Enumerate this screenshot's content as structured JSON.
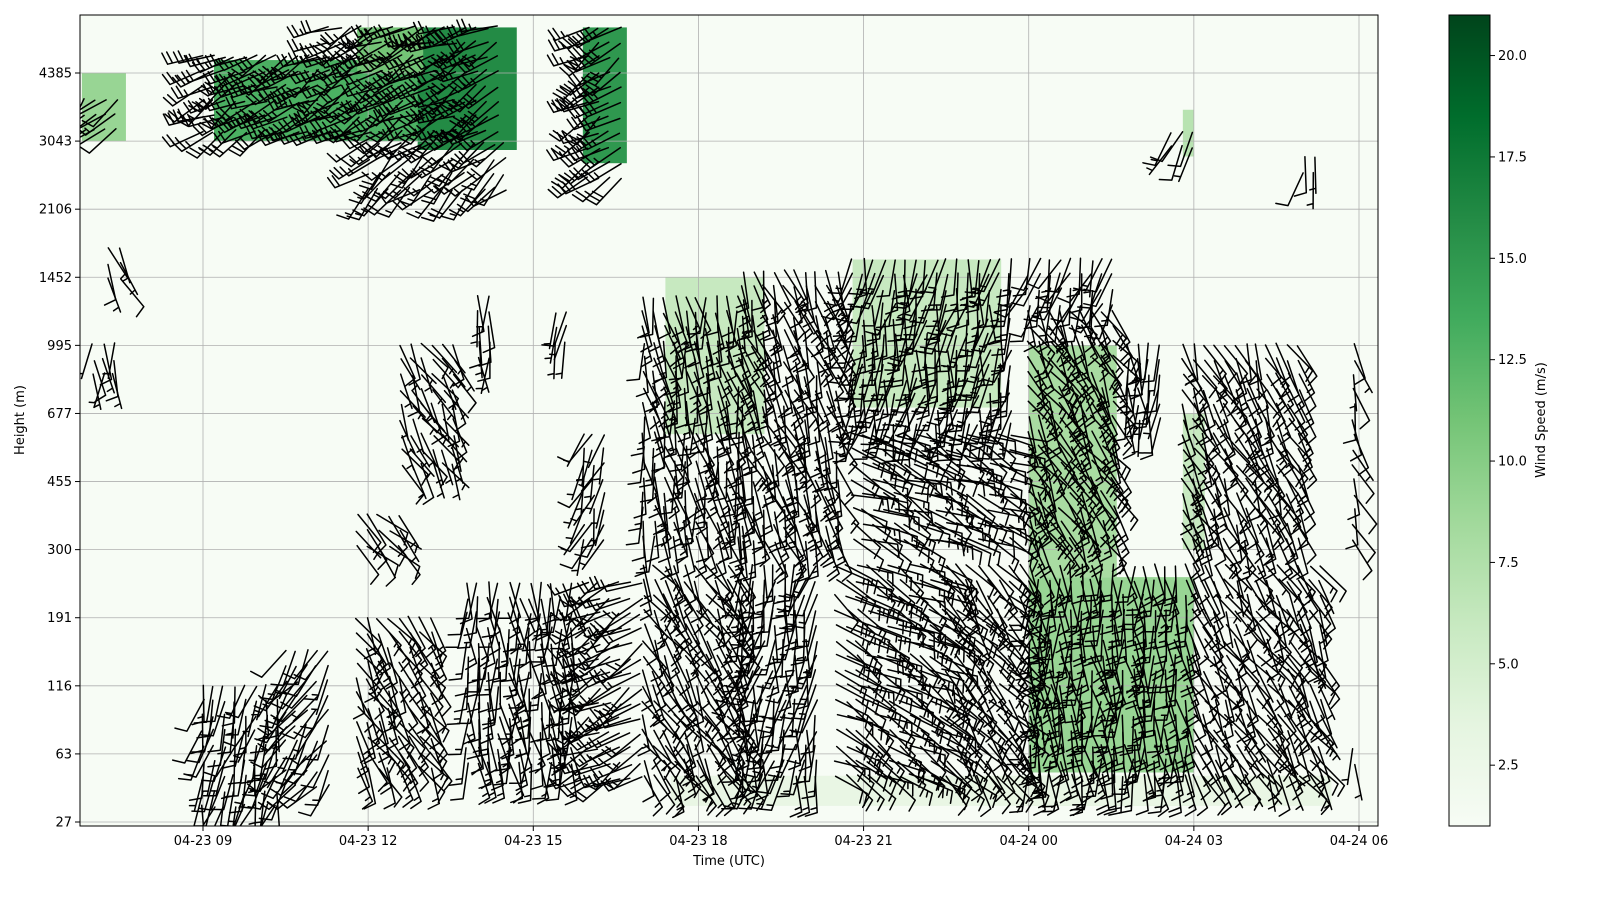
{
  "chart_data": {
    "type": "heatmap",
    "subtype": "wind-barbs-over-speed-field",
    "xlabel": "Time (UTC)",
    "ylabel": "Height (m)",
    "colorbar_label": "Wind Speed (m/s)",
    "x_ticks": [
      "04-23 09",
      "04-23 12",
      "04-23 15",
      "04-23 18",
      "04-23 21",
      "04-24 00",
      "04-24 03",
      "04-24 06"
    ],
    "x_tick_hours": [
      9,
      12,
      15,
      18,
      21,
      24,
      27,
      30
    ],
    "xlim_hours": [
      6.75,
      30.3
    ],
    "y_ticks": [
      "27",
      "63",
      "116",
      "191",
      "300",
      "455",
      "677",
      "995",
      "1452",
      "2106",
      "3043",
      "4385"
    ],
    "colorbar_ticks": [
      "2.5",
      "5.0",
      "7.5",
      "10.0",
      "12.5",
      "15.0",
      "17.5",
      "20.0"
    ],
    "colorbar_values": [
      2.5,
      5.0,
      7.5,
      10.0,
      12.5,
      15.0,
      17.5,
      20.0
    ],
    "colorbar_range": [
      1.0,
      21.0
    ],
    "colormap": "Greens",
    "colormap_stops": [
      "#f7fcf5",
      "#e5f5e0",
      "#c7e9c0",
      "#a1d99b",
      "#74c476",
      "#41ab5d",
      "#238b45",
      "#006d2c",
      "#00441b"
    ],
    "grid": true,
    "speed_regions": [
      {
        "t0": 6.8,
        "t1": 7.6,
        "h0": 3043,
        "h1": 4385,
        "speed": 9
      },
      {
        "t0": 9.2,
        "t1": 13.0,
        "h0": 3043,
        "h1": 4700,
        "speed": 13
      },
      {
        "t0": 12.9,
        "t1": 14.7,
        "h0": 2900,
        "h1": 5600,
        "speed": 16
      },
      {
        "t0": 11.8,
        "t1": 13.0,
        "h0": 4385,
        "h1": 5600,
        "speed": 11
      },
      {
        "t0": 15.9,
        "t1": 16.7,
        "h0": 2700,
        "h1": 5600,
        "speed": 15
      },
      {
        "t0": 17.4,
        "t1": 19.2,
        "h0": 600,
        "h1": 1452,
        "speed": 6
      },
      {
        "t0": 20.8,
        "t1": 23.5,
        "h0": 700,
        "h1": 1600,
        "speed": 6
      },
      {
        "t0": 24.0,
        "t1": 25.6,
        "h0": 250,
        "h1": 995,
        "speed": 8
      },
      {
        "t0": 24.0,
        "t1": 27.0,
        "h0": 50,
        "h1": 250,
        "speed": 9
      },
      {
        "t0": 26.8,
        "t1": 27.2,
        "h0": 300,
        "h1": 677,
        "speed": 6
      },
      {
        "t0": 24.0,
        "t1": 27.0,
        "h0": 33,
        "h1": 48,
        "speed": 5
      },
      {
        "t0": 17.5,
        "t1": 29.5,
        "h0": 33,
        "h1": 48,
        "speed": 3
      },
      {
        "t0": 26.8,
        "t1": 27.0,
        "h0": 2800,
        "h1": 3600,
        "speed": 7
      }
    ],
    "barb_regions": [
      {
        "t0": 6.85,
        "t1": 7.6,
        "h0": 3000,
        "h1": 3800,
        "dir": 225,
        "speed": 12
      },
      {
        "t0": 9.0,
        "t1": 14.5,
        "h0": 3000,
        "h1": 4800,
        "dir": 240,
        "speed": 24
      },
      {
        "t0": 11.3,
        "t1": 14.5,
        "h0": 4800,
        "h1": 5600,
        "dir": 245,
        "speed": 26
      },
      {
        "t0": 12.0,
        "t1": 14.5,
        "h0": 2300,
        "h1": 3000,
        "dir": 230,
        "speed": 16
      },
      {
        "t0": 16.0,
        "t1": 16.6,
        "h0": 2400,
        "h1": 5600,
        "dir": 235,
        "speed": 28
      },
      {
        "t0": 7.3,
        "t1": 7.5,
        "h0": 1400,
        "h1": 1700,
        "dir": 160,
        "speed": 5
      },
      {
        "t0": 7.0,
        "t1": 7.4,
        "h0": 780,
        "h1": 1000,
        "dir": 180,
        "speed": 6
      },
      {
        "t0": 12.6,
        "t1": 13.6,
        "h0": 500,
        "h1": 1000,
        "dir": 150,
        "speed": 6
      },
      {
        "t0": 14.0,
        "t1": 14.3,
        "h0": 900,
        "h1": 1300,
        "dir": 180,
        "speed": 6
      },
      {
        "t0": 15.4,
        "t1": 15.6,
        "h0": 1000,
        "h1": 1200,
        "dir": 195,
        "speed": 5
      },
      {
        "t0": 11.8,
        "t1": 12.7,
        "h0": 300,
        "h1": 370,
        "dir": 135,
        "speed": 8
      },
      {
        "t0": 15.9,
        "t1": 16.3,
        "h0": 300,
        "h1": 600,
        "dir": 200,
        "speed": 6
      },
      {
        "t0": 9.0,
        "t1": 10.5,
        "h0": 30,
        "h1": 116,
        "dir": 195,
        "speed": 10
      },
      {
        "t0": 10.5,
        "t1": 11.4,
        "h0": 40,
        "h1": 150,
        "dir": 215,
        "speed": 10
      },
      {
        "t0": 11.8,
        "t1": 13.2,
        "h0": 48,
        "h1": 191,
        "dir": 150,
        "speed": 12
      },
      {
        "t0": 13.8,
        "t1": 15.8,
        "h0": 48,
        "h1": 240,
        "dir": 175,
        "speed": 12
      },
      {
        "t0": 16.0,
        "t1": 17.0,
        "h0": 40,
        "h1": 240,
        "dir": 240,
        "speed": 15
      },
      {
        "t0": 17.0,
        "t1": 18.8,
        "h0": 300,
        "h1": 1300,
        "dir": 170,
        "speed": 12
      },
      {
        "t0": 17.0,
        "t1": 18.8,
        "h0": 48,
        "h1": 270,
        "dir": 150,
        "speed": 12
      },
      {
        "t0": 18.8,
        "t1": 20.2,
        "h0": 48,
        "h1": 270,
        "dir": 190,
        "speed": 12
      },
      {
        "t0": 18.8,
        "t1": 20.6,
        "h0": 300,
        "h1": 1500,
        "dir": 160,
        "speed": 14
      },
      {
        "t0": 20.5,
        "t1": 22.5,
        "h0": 48,
        "h1": 270,
        "dir": 120,
        "speed": 14
      },
      {
        "t0": 22.5,
        "t1": 24.0,
        "h0": 48,
        "h1": 270,
        "dir": 140,
        "speed": 14
      },
      {
        "t0": 20.8,
        "t1": 23.8,
        "h0": 600,
        "h1": 1600,
        "dir": 190,
        "speed": 14
      },
      {
        "t0": 20.8,
        "t1": 23.8,
        "h0": 300,
        "h1": 600,
        "dir": 115,
        "speed": 12
      },
      {
        "t0": 24.0,
        "t1": 25.6,
        "h0": 300,
        "h1": 1200,
        "dir": 150,
        "speed": 16
      },
      {
        "t0": 24.0,
        "t1": 25.6,
        "h0": 1200,
        "h1": 1600,
        "dir": 200,
        "speed": 10
      },
      {
        "t0": 24.0,
        "t1": 27.0,
        "h0": 48,
        "h1": 270,
        "dir": 175,
        "speed": 16
      },
      {
        "t0": 25.8,
        "t1": 26.4,
        "h0": 600,
        "h1": 1000,
        "dir": 180,
        "speed": 8
      },
      {
        "t0": 26.6,
        "t1": 27.0,
        "h0": 2800,
        "h1": 3200,
        "dir": 200,
        "speed": 10
      },
      {
        "t0": 26.8,
        "t1": 29.0,
        "h0": 300,
        "h1": 1000,
        "dir": 155,
        "speed": 12
      },
      {
        "t0": 27.0,
        "t1": 29.4,
        "h0": 48,
        "h1": 270,
        "dir": 150,
        "speed": 10
      },
      {
        "t0": 29.0,
        "t1": 29.3,
        "h0": 2500,
        "h1": 2800,
        "dir": 195,
        "speed": 6
      },
      {
        "t0": 29.9,
        "t1": 30.0,
        "h0": 300,
        "h1": 1000,
        "dir": 160,
        "speed": 8
      },
      {
        "t0": 29.9,
        "t1": 30.0,
        "h0": 48,
        "h1": 66,
        "dir": 170,
        "speed": 6
      }
    ]
  }
}
